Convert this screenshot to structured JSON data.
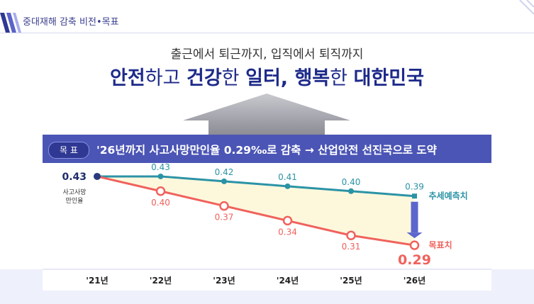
{
  "header": {
    "title": "중대재해 감축 비전•목표"
  },
  "vision": {
    "subtitle": "출근에서 퇴근까지, 입직에서 퇴직까지",
    "main_parts": [
      {
        "text": "안전",
        "bold": true
      },
      {
        "text": "하고 ",
        "bold": false
      },
      {
        "text": "건강",
        "bold": true
      },
      {
        "text": "한 ",
        "bold": false
      },
      {
        "text": "일터, 행복",
        "bold": true
      },
      {
        "text": "한 ",
        "bold": false
      },
      {
        "text": "대한민국",
        "bold": true
      }
    ]
  },
  "goal": {
    "badge": "목 표",
    "text": "'26년까지 사고사망만인율 0.29‰로 감축 → 산업안전 선진국으로 도약"
  },
  "chart_data": {
    "type": "line",
    "categories": [
      "'21년",
      "'22년",
      "'23년",
      "'24년",
      "'25년",
      "'26년"
    ],
    "ylabel": "사고사망\n만인율",
    "ylim": [
      0.27,
      0.44
    ],
    "start_value": "0.43",
    "series": [
      {
        "name": "추세예측치",
        "color": "#2b93a6",
        "values": [
          0.43,
          0.43,
          0.42,
          0.41,
          0.4,
          0.39
        ],
        "labels": [
          "",
          "0.43",
          "0.42",
          "0.41",
          "0.40",
          "0.39"
        ]
      },
      {
        "name": "목표치",
        "color": "#f0625d",
        "values": [
          0.43,
          0.4,
          0.37,
          0.34,
          0.31,
          0.29
        ],
        "labels": [
          "",
          "0.40",
          "0.37",
          "0.34",
          "0.31",
          "0.29"
        ]
      }
    ],
    "fill_between": "#fdf8dc",
    "grid": false
  }
}
